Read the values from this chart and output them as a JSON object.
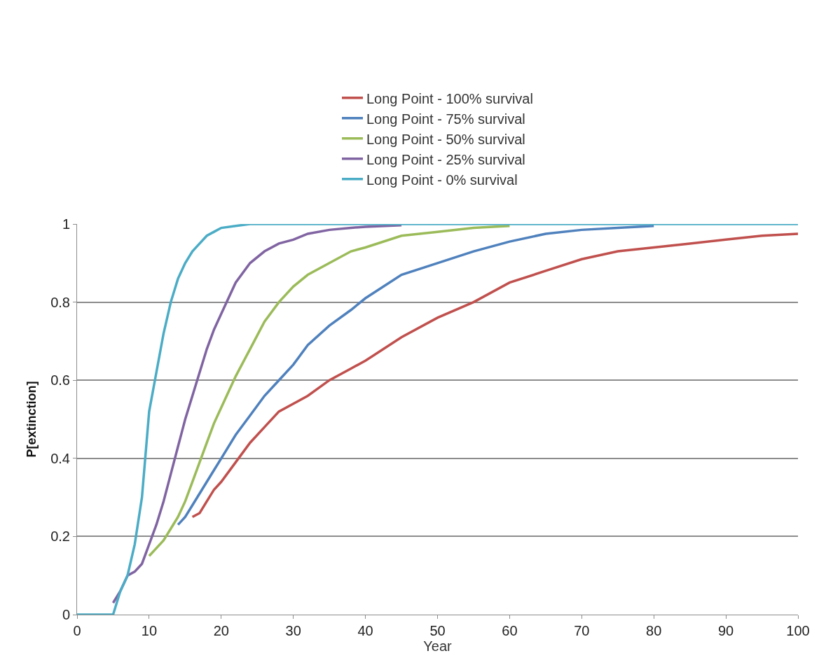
{
  "chart_data": {
    "type": "line",
    "xlabel": "Year",
    "ylabel": "P[extinction]",
    "x": [
      0,
      4.5,
      5,
      6,
      7,
      8,
      9,
      10,
      11,
      12,
      13,
      14,
      15,
      16,
      17,
      18,
      19,
      20,
      22,
      24,
      26,
      28,
      30,
      32,
      35,
      38,
      40,
      45,
      50,
      55,
      60,
      65,
      70,
      75,
      80,
      85,
      90,
      95,
      100
    ],
    "xlim": [
      0,
      100
    ],
    "xticks": [
      0,
      10,
      20,
      30,
      40,
      50,
      60,
      70,
      80,
      90,
      100
    ],
    "ylim": [
      0,
      1
    ],
    "yticks": [
      0,
      0.2,
      0.4,
      0.6,
      0.8,
      1
    ],
    "grid": "y",
    "legend": "top",
    "marker": "none",
    "line_style": "solid",
    "series": [
      {
        "name": "Long Point - 100% survival",
        "color": "#c0504d",
        "x": [
          16,
          17,
          18,
          19,
          20,
          22,
          24,
          26,
          28,
          30,
          32,
          35,
          38,
          40,
          45,
          50,
          55,
          60,
          65,
          70,
          75,
          80,
          85,
          90,
          95,
          100
        ],
        "values": [
          0.25,
          0.26,
          0.29,
          0.32,
          0.34,
          0.39,
          0.44,
          0.48,
          0.52,
          0.54,
          0.56,
          0.6,
          0.63,
          0.65,
          0.71,
          0.76,
          0.8,
          0.85,
          0.88,
          0.91,
          0.93,
          0.94,
          0.95,
          0.96,
          0.97,
          0.975
        ]
      },
      {
        "name": "Long Point - 75% survival",
        "color": "#4f81bd",
        "x": [
          14,
          15,
          16,
          17,
          18,
          19,
          20,
          22,
          24,
          26,
          28,
          30,
          32,
          35,
          38,
          40,
          45,
          50,
          55,
          60,
          65,
          70,
          75,
          80
        ],
        "values": [
          0.23,
          0.25,
          0.28,
          0.31,
          0.34,
          0.37,
          0.4,
          0.46,
          0.51,
          0.56,
          0.6,
          0.64,
          0.69,
          0.74,
          0.78,
          0.81,
          0.87,
          0.9,
          0.93,
          0.955,
          0.975,
          0.985,
          0.99,
          0.995
        ]
      },
      {
        "name": "Long Point - 50% survival",
        "color": "#9bbb59",
        "x": [
          10,
          11,
          12,
          13,
          14,
          15,
          16,
          17,
          18,
          19,
          20,
          22,
          24,
          26,
          28,
          30,
          32,
          35,
          38,
          40,
          45,
          50,
          55,
          60
        ],
        "values": [
          0.15,
          0.17,
          0.19,
          0.22,
          0.25,
          0.29,
          0.34,
          0.39,
          0.44,
          0.49,
          0.53,
          0.61,
          0.68,
          0.75,
          0.8,
          0.84,
          0.87,
          0.9,
          0.93,
          0.94,
          0.97,
          0.98,
          0.99,
          0.995
        ]
      },
      {
        "name": "Long Point - 25% survival",
        "color": "#8064a2",
        "x": [
          5,
          6,
          7,
          8,
          9,
          10,
          11,
          12,
          13,
          14,
          15,
          16,
          17,
          18,
          19,
          20,
          22,
          24,
          26,
          28,
          30,
          32,
          35,
          38,
          40,
          45
        ],
        "values": [
          0.03,
          0.06,
          0.1,
          0.11,
          0.13,
          0.18,
          0.23,
          0.29,
          0.36,
          0.43,
          0.5,
          0.56,
          0.62,
          0.68,
          0.73,
          0.77,
          0.85,
          0.9,
          0.93,
          0.95,
          0.96,
          0.975,
          0.985,
          0.99,
          0.993,
          0.997
        ]
      },
      {
        "name": "Long Point - 0% survival",
        "color": "#4bacc6",
        "values": [
          0,
          0,
          0,
          0.06,
          0.1,
          0.18,
          0.3,
          0.52,
          0.62,
          0.72,
          0.8,
          0.86,
          0.9,
          0.93,
          0.95,
          0.97,
          0.98,
          0.99,
          0.995,
          1,
          1,
          1,
          1,
          1,
          1,
          1,
          1,
          1,
          1,
          1,
          1,
          1,
          1,
          1,
          1,
          1,
          1,
          1,
          1
        ]
      }
    ]
  }
}
